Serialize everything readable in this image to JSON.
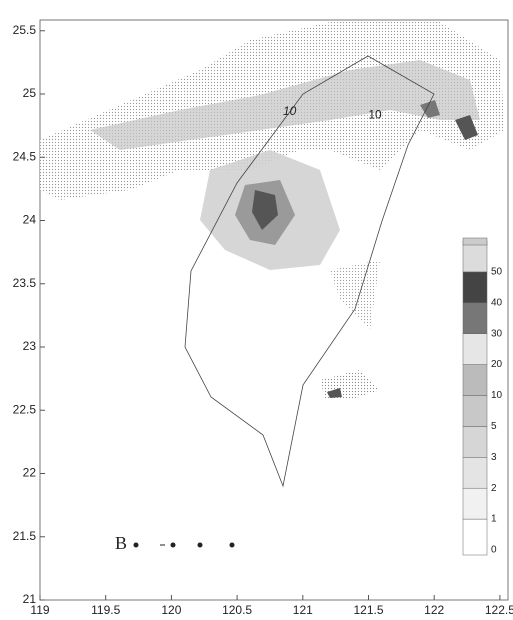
{
  "map": {
    "x_ticks": [
      119,
      119.5,
      120,
      120.5,
      121,
      121.5,
      122,
      122.5
    ],
    "y_ticks": [
      21,
      21.5,
      22,
      22.5,
      23,
      23.5,
      24,
      24.5,
      25,
      25.5
    ],
    "contour_labels": [
      {
        "text": "10",
        "lon": 120.9,
        "lat": 24.86
      },
      {
        "text": "10",
        "lon": 121.55,
        "lat": 24.83
      }
    ],
    "colorbar_levels": [
      0,
      1,
      2,
      3,
      5,
      10,
      20,
      30,
      40,
      50
    ],
    "panel_label": "B"
  }
}
